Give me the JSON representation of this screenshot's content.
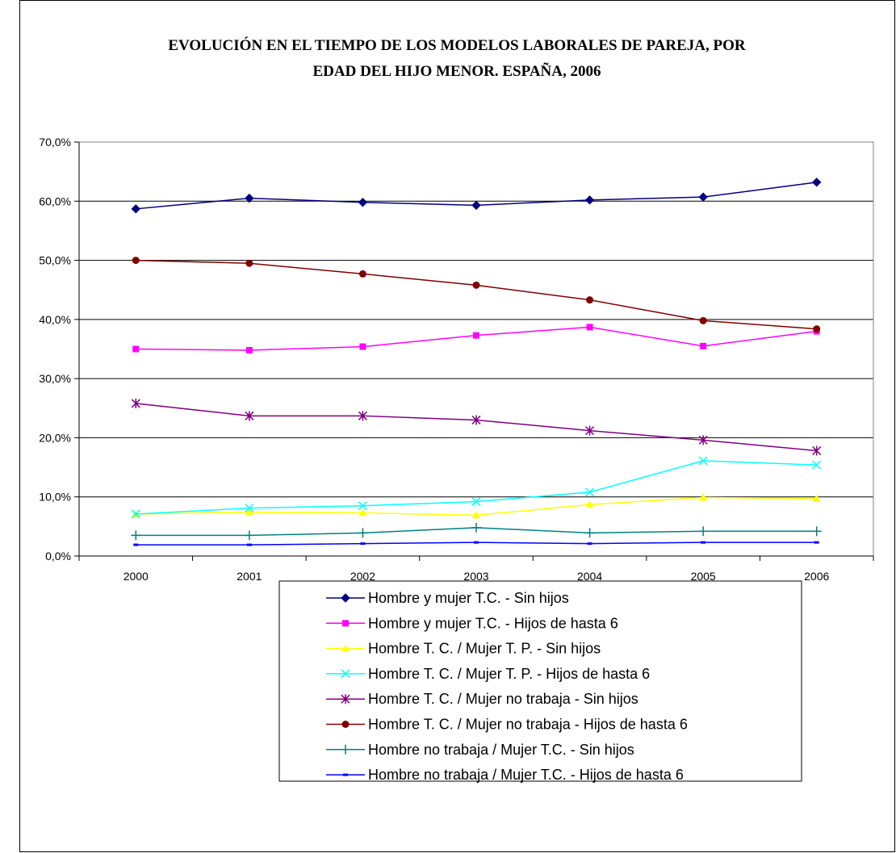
{
  "chart_data": {
    "type": "line",
    "title": [
      "EVOLUCIÓN EN EL TIEMPO DE LOS MODELOS LABORALES DE PAREJA, POR",
      "EDAD DEL HIJO MENOR. ESPAÑA, 2006"
    ],
    "xlabel": "",
    "ylabel": "",
    "ylim": [
      0,
      70
    ],
    "yticks": [
      "0,0%",
      "10,0%",
      "20,0%",
      "30,0%",
      "40,0%",
      "50,0%",
      "60,0%",
      "70,0%"
    ],
    "categories": [
      "2000",
      "2001",
      "2002",
      "2003",
      "2004",
      "2005",
      "2006"
    ],
    "grid": "horizontal",
    "legend_position": "bottom",
    "series": [
      {
        "name": "Hombre y mujer T.C. - Sin hijos",
        "color": "#000080",
        "marker": "diamond",
        "values": [
          58.7,
          60.5,
          59.8,
          59.3,
          60.2,
          60.7,
          63.2
        ]
      },
      {
        "name": "Hombre y mujer T.C. - Hijos de hasta 6",
        "color": "#FF00FF",
        "marker": "square",
        "values": [
          35.0,
          34.8,
          35.4,
          37.3,
          38.7,
          35.5,
          38.0
        ]
      },
      {
        "name": "Hombre T. C. / Mujer T. P. - Sin hijos",
        "color": "#FFFF00",
        "marker": "triangle",
        "values": [
          7.1,
          7.4,
          7.3,
          6.9,
          8.7,
          9.9,
          9.7
        ]
      },
      {
        "name": "Hombre T. C. / Mujer T. P. - Hijos de hasta 6",
        "color": "#00FFFF",
        "marker": "x",
        "values": [
          7.1,
          8.1,
          8.5,
          9.2,
          10.8,
          16.1,
          15.4
        ]
      },
      {
        "name": "Hombre T. C. / Mujer no trabaja - Sin hijos",
        "color": "#800080",
        "marker": "star",
        "values": [
          25.8,
          23.7,
          23.7,
          23.0,
          21.2,
          19.6,
          17.8
        ]
      },
      {
        "name": "Hombre T. C. / Mujer no trabaja - Hijos de hasta 6",
        "color": "#800000",
        "marker": "circle",
        "values": [
          50.0,
          49.5,
          47.7,
          45.8,
          43.3,
          39.8,
          38.4
        ]
      },
      {
        "name": "Hombre no trabaja / Mujer T.C. - Sin hijos",
        "color": "#008080",
        "marker": "plus",
        "values": [
          3.5,
          3.5,
          3.9,
          4.8,
          3.9,
          4.2,
          4.2
        ]
      },
      {
        "name": "Hombre no trabaja / Mujer T.C. - Hijos de hasta 6",
        "color": "#0000FF",
        "marker": "dash",
        "values": [
          1.9,
          1.9,
          2.1,
          2.3,
          2.1,
          2.3,
          2.3
        ]
      }
    ]
  }
}
